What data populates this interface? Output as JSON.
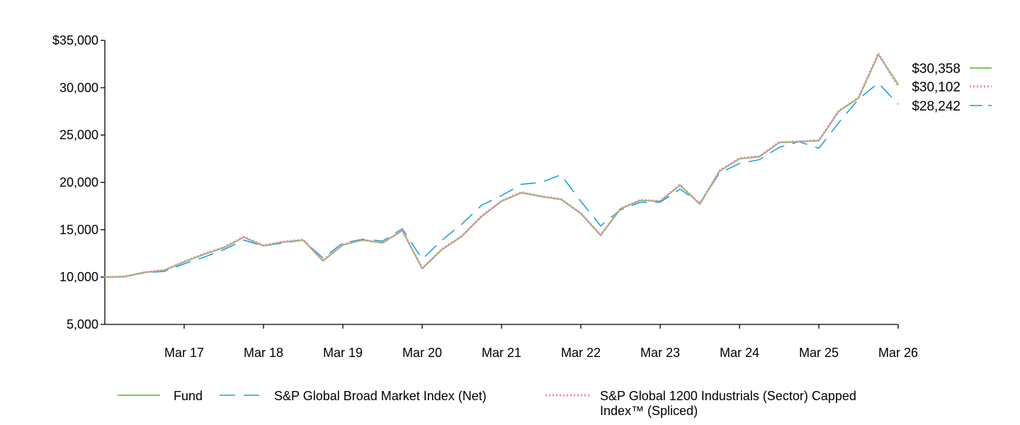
{
  "chart_data": {
    "type": "line",
    "title": "",
    "xlabel": "",
    "ylabel": "",
    "x_start": "2016-03",
    "x_ticks": [
      "Mar 17",
      "Mar 18",
      "Mar 19",
      "Mar 20",
      "Mar 21",
      "Mar 22",
      "Mar 23",
      "Mar 24",
      "Mar 25",
      "Mar 26"
    ],
    "y_ticks": [
      "$35,000",
      "30,000",
      "25,000",
      "20,000",
      "15,000",
      "10,000",
      "5,000"
    ],
    "ylim": [
      5000,
      35000
    ],
    "grid": false,
    "legend_position": "bottom",
    "series": [
      {
        "name": "Fund",
        "color": "#7dc656",
        "dash": "solid",
        "end_label": "$30,358",
        "points": [
          [
            "2016-03",
            10000
          ],
          [
            "2016-06",
            10050
          ],
          [
            "2016-09",
            10500
          ],
          [
            "2016-12",
            10700
          ],
          [
            "2017-03",
            11600
          ],
          [
            "2017-06",
            12400
          ],
          [
            "2017-09",
            13100
          ],
          [
            "2017-12",
            14200
          ],
          [
            "2018-03",
            13300
          ],
          [
            "2018-06",
            13700
          ],
          [
            "2018-09",
            13900
          ],
          [
            "2018-12",
            11700
          ],
          [
            "2019-03",
            13400
          ],
          [
            "2019-06",
            13900
          ],
          [
            "2019-09",
            13600
          ],
          [
            "2019-12",
            14900
          ],
          [
            "2020-03",
            10900
          ],
          [
            "2020-06",
            12900
          ],
          [
            "2020-09",
            14300
          ],
          [
            "2020-12",
            16400
          ],
          [
            "2021-03",
            18000
          ],
          [
            "2021-06",
            18900
          ],
          [
            "2021-09",
            18500
          ],
          [
            "2021-12",
            18200
          ],
          [
            "2022-03",
            16700
          ],
          [
            "2022-06",
            14400
          ],
          [
            "2022-09",
            17200
          ],
          [
            "2022-12",
            18100
          ],
          [
            "2023-03",
            18000
          ],
          [
            "2023-06",
            19700
          ],
          [
            "2023-09",
            17700
          ],
          [
            "2023-12",
            21200
          ],
          [
            "2024-03",
            22500
          ],
          [
            "2024-06",
            22700
          ],
          [
            "2024-09",
            24200
          ],
          [
            "2024-12",
            24300
          ],
          [
            "2025-03",
            24400
          ],
          [
            "2025-06",
            27500
          ],
          [
            "2025-09",
            28900
          ],
          [
            "2025-12",
            33500
          ],
          [
            "2026-03",
            30358
          ]
        ]
      },
      {
        "name": "S&P Global Broad Market Index (Net)",
        "color": "#1aa3d9",
        "dash": "long-dash",
        "end_label": "$28,242",
        "points": [
          [
            "2016-03",
            10000
          ],
          [
            "2016-06",
            10050
          ],
          [
            "2016-09",
            10450
          ],
          [
            "2016-12",
            10600
          ],
          [
            "2017-03",
            11400
          ],
          [
            "2017-06",
            12100
          ],
          [
            "2017-09",
            12900
          ],
          [
            "2017-12",
            13900
          ],
          [
            "2018-03",
            13300
          ],
          [
            "2018-06",
            13600
          ],
          [
            "2018-09",
            13900
          ],
          [
            "2018-12",
            12000
          ],
          [
            "2019-03",
            13600
          ],
          [
            "2019-06",
            14000
          ],
          [
            "2019-09",
            13800
          ],
          [
            "2019-12",
            15100
          ],
          [
            "2020-03",
            11900
          ],
          [
            "2020-06",
            13900
          ],
          [
            "2020-09",
            15600
          ],
          [
            "2020-12",
            17600
          ],
          [
            "2021-03",
            18600
          ],
          [
            "2021-06",
            19800
          ],
          [
            "2021-09",
            20000
          ],
          [
            "2021-12",
            20800
          ],
          [
            "2022-03",
            18000
          ],
          [
            "2022-06",
            15400
          ],
          [
            "2022-09",
            17100
          ],
          [
            "2022-12",
            17900
          ],
          [
            "2023-03",
            17900
          ],
          [
            "2023-06",
            19300
          ],
          [
            "2023-09",
            17800
          ],
          [
            "2023-12",
            21000
          ],
          [
            "2024-03",
            22000
          ],
          [
            "2024-06",
            22400
          ],
          [
            "2024-09",
            23700
          ],
          [
            "2024-12",
            24300
          ],
          [
            "2025-03",
            23600
          ],
          [
            "2025-06",
            26300
          ],
          [
            "2025-09",
            28800
          ],
          [
            "2025-12",
            30500
          ],
          [
            "2026-03",
            28242
          ]
        ]
      },
      {
        "name": "S&P Global 1200 Industrials (Sector) Capped Index™ (Spliced)",
        "color": "#f47fbf",
        "dash": "dotted",
        "end_label": "$30,102",
        "points": [
          [
            "2016-03",
            10000
          ],
          [
            "2016-06",
            10050
          ],
          [
            "2016-09",
            10500
          ],
          [
            "2016-12",
            10750
          ],
          [
            "2017-03",
            11650
          ],
          [
            "2017-06",
            12450
          ],
          [
            "2017-09",
            13150
          ],
          [
            "2017-12",
            14250
          ],
          [
            "2018-03",
            13350
          ],
          [
            "2018-06",
            13750
          ],
          [
            "2018-09",
            13950
          ],
          [
            "2018-12",
            11750
          ],
          [
            "2019-03",
            13450
          ],
          [
            "2019-06",
            13950
          ],
          [
            "2019-09",
            13650
          ],
          [
            "2019-12",
            14950
          ],
          [
            "2020-03",
            10950
          ],
          [
            "2020-06",
            12950
          ],
          [
            "2020-09",
            14350
          ],
          [
            "2020-12",
            16450
          ],
          [
            "2021-03",
            18050
          ],
          [
            "2021-06",
            18950
          ],
          [
            "2021-09",
            18550
          ],
          [
            "2021-12",
            18250
          ],
          [
            "2022-03",
            16750
          ],
          [
            "2022-06",
            14450
          ],
          [
            "2022-09",
            17250
          ],
          [
            "2022-12",
            18150
          ],
          [
            "2023-03",
            18050
          ],
          [
            "2023-06",
            19750
          ],
          [
            "2023-09",
            17750
          ],
          [
            "2023-12",
            21250
          ],
          [
            "2024-03",
            22550
          ],
          [
            "2024-06",
            22750
          ],
          [
            "2024-09",
            24250
          ],
          [
            "2024-12",
            24350
          ],
          [
            "2025-03",
            24450
          ],
          [
            "2025-06",
            27550
          ],
          [
            "2025-09",
            28950
          ],
          [
            "2025-12",
            33650
          ],
          [
            "2026-03",
            30102
          ]
        ]
      }
    ],
    "end_labels_order": [
      "Fund",
      "S&P Global 1200 Industrials (Sector) Capped Index™ (Spliced)",
      "S&P Global Broad Market Index (Net)"
    ],
    "legend": [
      {
        "label": "Fund",
        "style": "solid",
        "color": "#7dc656"
      },
      {
        "label": "S&P Global Broad Market Index (Net)",
        "style": "long-dash",
        "color": "#1aa3d9"
      },
      {
        "label_lines": [
          "S&P Global 1200 Industrials (Sector) Capped",
          "Index™ (Spliced)"
        ],
        "style": "dotted",
        "color": "#f47fbf"
      }
    ]
  }
}
